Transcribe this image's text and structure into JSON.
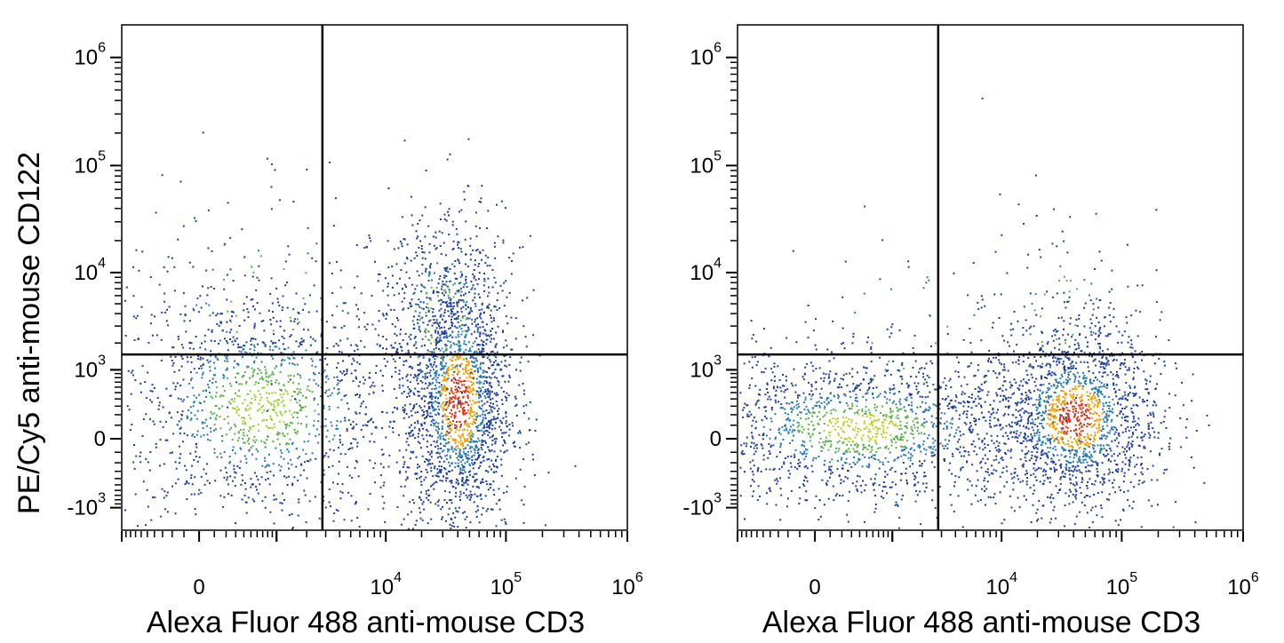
{
  "figure": {
    "ylabel": "PE/Cy5 anti-mouse CD122"
  },
  "chart_data": [
    {
      "type": "scatter",
      "style": "pseudocolor-density",
      "xlabel": "Alexa Fluor 488 anti-mouse CD3",
      "x_scale": "biexponential",
      "y_scale": "biexponential",
      "xlim": [
        -1000,
        1000000
      ],
      "ylim": [
        -1800,
        2000000
      ],
      "x_tick_labels": [
        {
          "value": 0,
          "base": "0",
          "exp": ""
        },
        {
          "value": 10000,
          "base": "10",
          "exp": "4"
        },
        {
          "value": 100000,
          "base": "10",
          "exp": "5"
        },
        {
          "value": 1000000,
          "base": "10",
          "exp": "6"
        }
      ],
      "y_tick_labels": [
        {
          "value": -1000,
          "base": "-10",
          "exp": "3"
        },
        {
          "value": 0,
          "base": "0",
          "exp": ""
        },
        {
          "value": 1000,
          "base": "10",
          "exp": "3"
        },
        {
          "value": 10000,
          "base": "10",
          "exp": "4"
        },
        {
          "value": 100000,
          "base": "10",
          "exp": "5"
        },
        {
          "value": 1000000,
          "base": "10",
          "exp": "6"
        }
      ],
      "quadrant_gate": {
        "x": 2800,
        "y": 1500
      },
      "populations": [
        {
          "x_center": 700,
          "y_center": 300,
          "x_spread": 0.42,
          "y_spread": 0.36,
          "events": 1500,
          "density_color": "#9acd32"
        },
        {
          "x_center": 40000,
          "y_center": 400,
          "x_spread": 0.14,
          "y_spread": 0.42,
          "events": 1900,
          "density_color": "#e03010"
        },
        {
          "x_center": 30000,
          "y_center": 3500,
          "x_spread": 0.18,
          "y_spread": 0.35,
          "events": 380,
          "density_color": "#1e3f9a"
        },
        {
          "x_center": 800,
          "y_center": 6000,
          "x_spread": 0.4,
          "y_spread": 0.4,
          "events": 140,
          "density_color": "#1e3f9a"
        }
      ]
    },
    {
      "type": "scatter",
      "style": "pseudocolor-density",
      "xlabel": "Alexa Fluor 488 anti-mouse CD3",
      "x_scale": "biexponential",
      "y_scale": "biexponential",
      "xlim": [
        -1000,
        1000000
      ],
      "ylim": [
        -1800,
        2000000
      ],
      "x_tick_labels": [
        {
          "value": 0,
          "base": "0",
          "exp": ""
        },
        {
          "value": 10000,
          "base": "10",
          "exp": "4"
        },
        {
          "value": 100000,
          "base": "10",
          "exp": "5"
        },
        {
          "value": 1000000,
          "base": "10",
          "exp": "6"
        }
      ],
      "y_tick_labels": [
        {
          "value": -1000,
          "base": "-10",
          "exp": "3"
        },
        {
          "value": 0,
          "base": "0",
          "exp": ""
        },
        {
          "value": 1000,
          "base": "10",
          "exp": "3"
        },
        {
          "value": 10000,
          "base": "10",
          "exp": "4"
        },
        {
          "value": 100000,
          "base": "10",
          "exp": "5"
        },
        {
          "value": 1000000,
          "base": "10",
          "exp": "6"
        }
      ],
      "quadrant_gate": {
        "x": 2800,
        "y": 1500
      },
      "populations": [
        {
          "x_center": 400,
          "y_center": 80,
          "x_spread": 0.5,
          "y_spread": 0.22,
          "events": 1700,
          "density_color": "#b8d020"
        },
        {
          "x_center": 40000,
          "y_center": 180,
          "x_spread": 0.22,
          "y_spread": 0.28,
          "events": 1700,
          "density_color": "#e03010"
        },
        {
          "x_center": 30000,
          "y_center": 4000,
          "x_spread": 0.2,
          "y_spread": 0.35,
          "events": 110,
          "density_color": "#1e3f9a"
        },
        {
          "x_center": 1500,
          "y_center": 2500,
          "x_spread": 0.35,
          "y_spread": 0.35,
          "events": 60,
          "density_color": "#1e3f9a"
        }
      ]
    }
  ]
}
